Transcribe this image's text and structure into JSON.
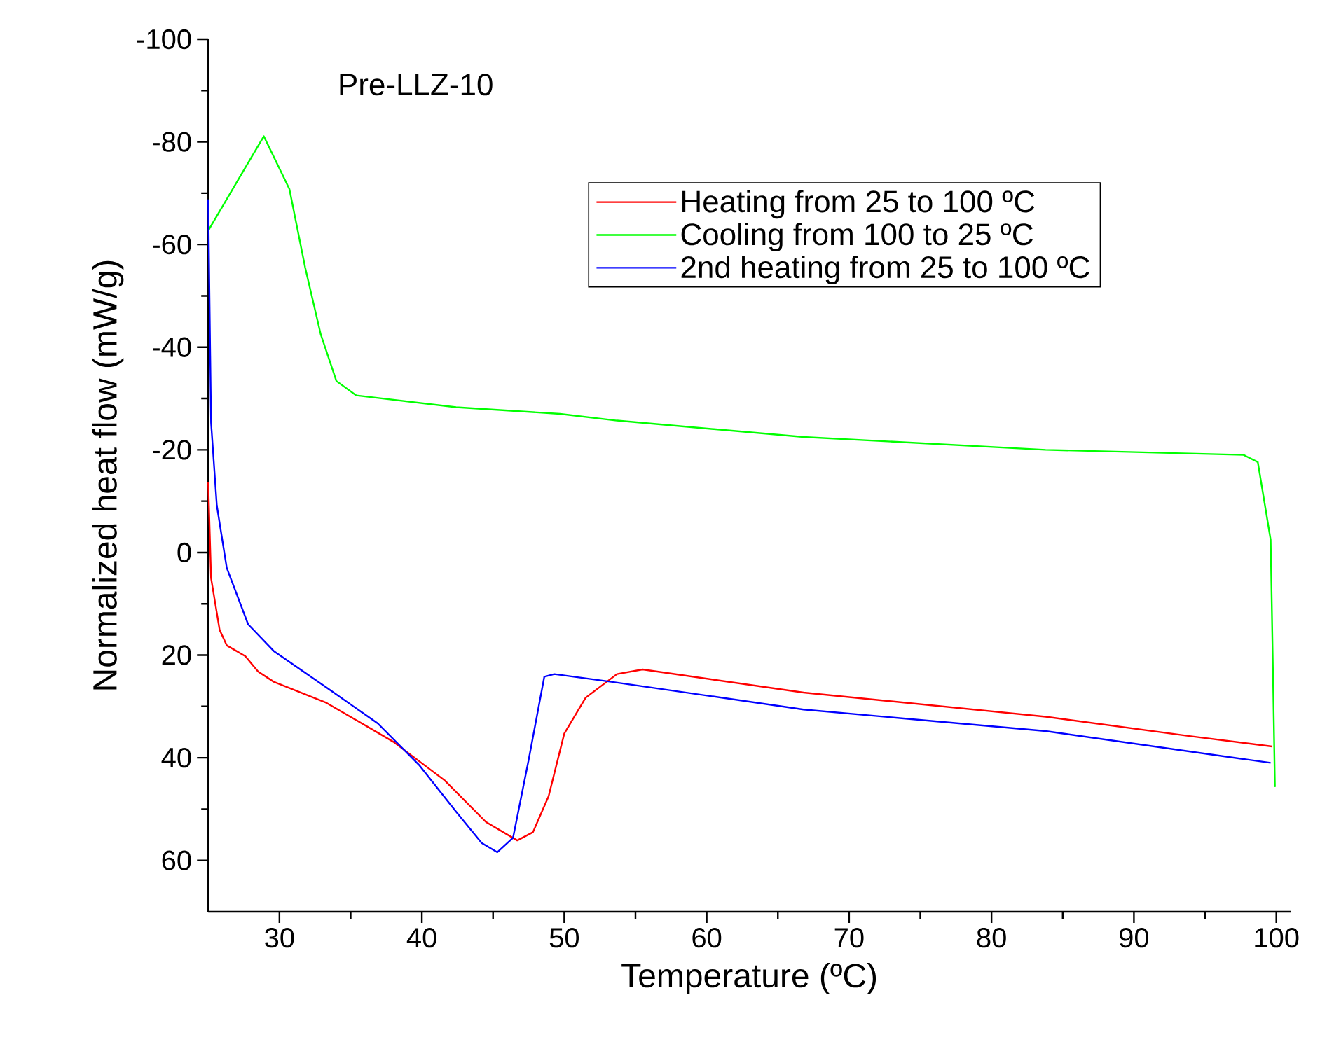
{
  "chart_data": {
    "type": "line",
    "xlabel": "Temperature (ºC)",
    "ylabel": "Normalized heat flow (mW/g)",
    "annotations": [
      "Pre-LLZ-10"
    ],
    "xlim": [
      25,
      101
    ],
    "xticks": [
      30,
      40,
      50,
      60,
      70,
      80,
      90,
      100
    ],
    "ylim": [
      70,
      -100
    ],
    "yticks": [
      -100,
      -80,
      -60,
      -40,
      -20,
      0,
      20,
      40,
      60
    ],
    "legend": "top right",
    "grid": false,
    "marker": "none",
    "line_style": "solid",
    "series": [
      {
        "name": "Heating from 25 to 100 ºC",
        "color": "#ff0000",
        "x": [
          25,
          25.2,
          25.8,
          26.3,
          27.6,
          28.5,
          29.6,
          33.3,
          38.0,
          41.6,
          44.5,
          46.7,
          47.8,
          48.9,
          50.0,
          51.5,
          53.7,
          55.5,
          66.8,
          83.8,
          94.0,
          99.7
        ],
        "values": [
          -13.7,
          5,
          15.1,
          18.1,
          20.2,
          23.2,
          25.2,
          29.3,
          36.9,
          44.4,
          52.5,
          56.1,
          54.5,
          47.5,
          35.3,
          28.3,
          23.7,
          22.8,
          27.3,
          32.0,
          35.8,
          37.8
        ]
      },
      {
        "name": "Cooling from 100 to 25 ºC",
        "color": "#00ff00",
        "x": [
          25,
          28.9,
          30.7,
          31.8,
          32.9,
          34.0,
          35.4,
          42.4,
          49.7,
          53.7,
          66.8,
          83.8,
          97.7,
          98.7,
          99.6,
          99.75,
          99.9
        ],
        "values": [
          -62.7,
          -81.1,
          -70.8,
          -55.6,
          -42.5,
          -33.4,
          -30.6,
          -28.3,
          -27,
          -25.7,
          -22.5,
          -20,
          -19,
          -17.6,
          -2.5,
          21,
          45.7
        ]
      },
      {
        "name": "2nd heating from 25 to 100 ºC",
        "color": "#0000ff",
        "x": [
          25,
          25.2,
          25.6,
          26.3,
          27.8,
          29.6,
          33.3,
          36.9,
          39.8,
          42.4,
          44.2,
          45.3,
          46.4,
          47.5,
          48.6,
          49.3,
          53.3,
          66.8,
          83.8,
          99.6
        ],
        "values": [
          -68.8,
          -25.3,
          -9.2,
          3.0,
          14,
          19.2,
          26.3,
          33.3,
          41.4,
          50.5,
          56.6,
          58.4,
          55.6,
          40.4,
          24.2,
          23.7,
          25.2,
          30.6,
          34.8,
          41.0
        ]
      }
    ]
  }
}
